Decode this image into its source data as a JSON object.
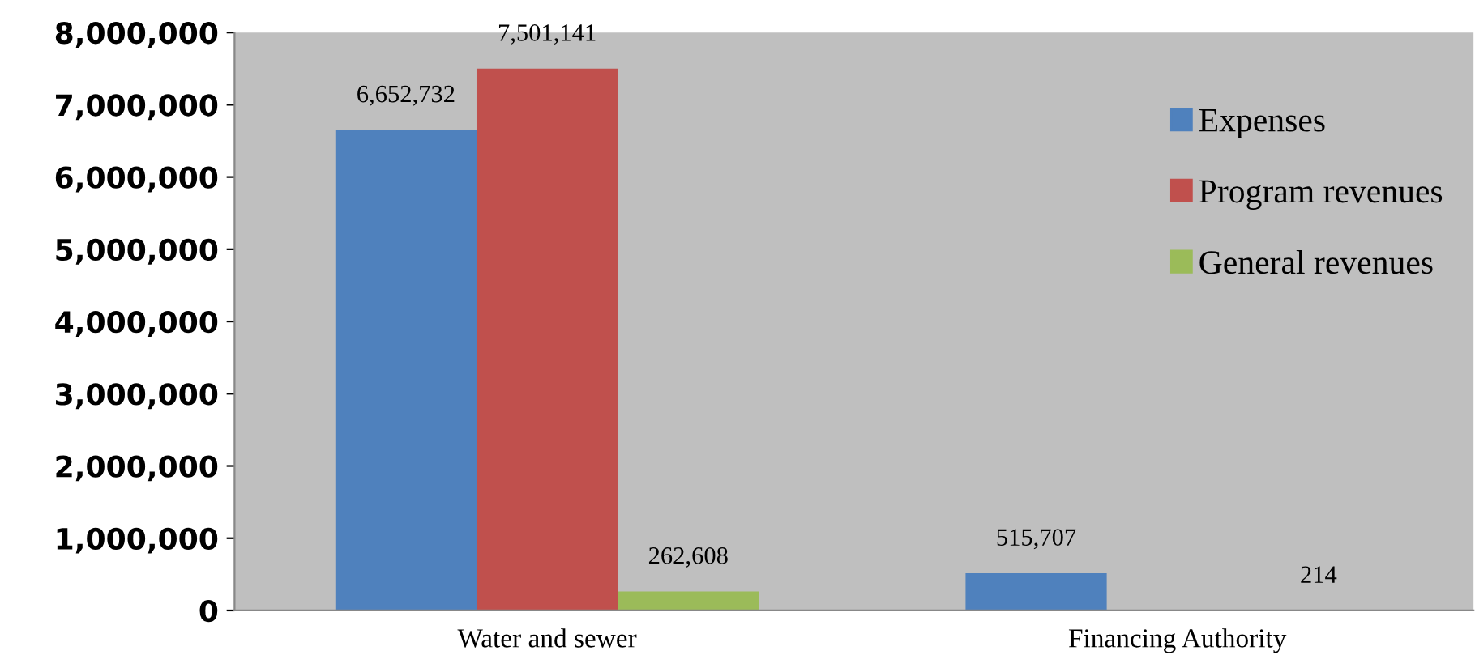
{
  "chart_data": {
    "type": "bar",
    "categories": [
      "Water and sewer",
      "Financing Authority"
    ],
    "series": [
      {
        "name": "Expenses",
        "color": "#4f81bd",
        "values": [
          6652732,
          515707
        ],
        "value_labels": [
          "6,652,732",
          "515,707"
        ]
      },
      {
        "name": "Program revenues",
        "color": "#c0504d",
        "values": [
          7501141,
          null
        ],
        "value_labels": [
          "7,501,141",
          null
        ]
      },
      {
        "name": "General revenues",
        "color": "#9bbb59",
        "values": [
          262608,
          214
        ],
        "value_labels": [
          "262,608",
          "214"
        ]
      }
    ],
    "ylim": [
      0,
      8000000
    ],
    "yticks": [
      {
        "value": 0,
        "label": "0"
      },
      {
        "value": 1000000,
        "label": "1,000,000"
      },
      {
        "value": 2000000,
        "label": "2,000,000"
      },
      {
        "value": 3000000,
        "label": "3,000,000"
      },
      {
        "value": 4000000,
        "label": "4,000,000"
      },
      {
        "value": 5000000,
        "label": "5,000,000"
      },
      {
        "value": 6000000,
        "label": "6,000,000"
      },
      {
        "value": 7000000,
        "label": "7,000,000"
      },
      {
        "value": 8000000,
        "label": "8,000,000"
      }
    ],
    "grid": false,
    "legend": "right"
  }
}
